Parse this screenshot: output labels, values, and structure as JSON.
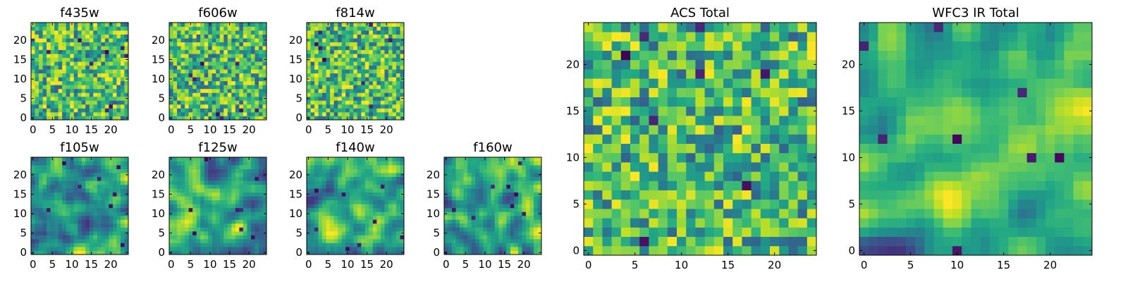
{
  "chart_data": [
    {
      "type": "heatmap",
      "id": "f435w",
      "title": "f435w",
      "grid_size": 25,
      "xlim": [
        -0.5,
        24.5
      ],
      "ylim": [
        -0.5,
        24.5
      ],
      "xticks": [
        0,
        5,
        10,
        15,
        20
      ],
      "yticks": [
        0,
        5,
        10,
        15,
        20
      ],
      "colormap": "viridis",
      "texture": "noisy",
      "seed": 11
    },
    {
      "type": "heatmap",
      "id": "f606w",
      "title": "f606w",
      "grid_size": 25,
      "xlim": [
        -0.5,
        24.5
      ],
      "ylim": [
        -0.5,
        24.5
      ],
      "xticks": [
        0,
        5,
        10,
        15,
        20
      ],
      "yticks": [
        0,
        5,
        10,
        15,
        20
      ],
      "colormap": "viridis",
      "texture": "noisy",
      "seed": 23
    },
    {
      "type": "heatmap",
      "id": "f814w",
      "title": "f814w",
      "grid_size": 25,
      "xlim": [
        -0.5,
        24.5
      ],
      "ylim": [
        -0.5,
        24.5
      ],
      "xticks": [
        0,
        5,
        10,
        15,
        20
      ],
      "yticks": [
        0,
        5,
        10,
        15,
        20
      ],
      "colormap": "viridis",
      "texture": "noisy",
      "seed": 37
    },
    {
      "type": "heatmap",
      "id": "f105w",
      "title": "f105w",
      "grid_size": 25,
      "xlim": [
        -0.5,
        24.5
      ],
      "ylim": [
        -0.5,
        24.5
      ],
      "xticks": [
        0,
        5,
        10,
        15,
        20
      ],
      "yticks": [
        0,
        5,
        10,
        15,
        20
      ],
      "colormap": "viridis",
      "texture": "smooth",
      "seed": 41
    },
    {
      "type": "heatmap",
      "id": "f125w",
      "title": "f125w",
      "grid_size": 25,
      "xlim": [
        -0.5,
        24.5
      ],
      "ylim": [
        -0.5,
        24.5
      ],
      "xticks": [
        0,
        5,
        10,
        15,
        20
      ],
      "yticks": [
        0,
        5,
        10,
        15,
        20
      ],
      "colormap": "viridis",
      "texture": "smooth",
      "seed": 53
    },
    {
      "type": "heatmap",
      "id": "f140w",
      "title": "f140w",
      "grid_size": 25,
      "xlim": [
        -0.5,
        24.5
      ],
      "ylim": [
        -0.5,
        24.5
      ],
      "xticks": [
        0,
        5,
        10,
        15,
        20
      ],
      "yticks": [
        0,
        5,
        10,
        15,
        20
      ],
      "colormap": "viridis",
      "texture": "smooth",
      "seed": 67
    },
    {
      "type": "heatmap",
      "id": "f160w",
      "title": "f160w",
      "grid_size": 25,
      "xlim": [
        -0.5,
        24.5
      ],
      "ylim": [
        -0.5,
        24.5
      ],
      "xticks": [
        0,
        5,
        10,
        15,
        20
      ],
      "yticks": [
        0,
        5,
        10,
        15,
        20
      ],
      "colormap": "viridis",
      "texture": "smooth",
      "seed": 79
    },
    {
      "type": "heatmap",
      "id": "acs-total",
      "title": "ACS Total",
      "grid_size": 25,
      "xlim": [
        -0.5,
        24.5
      ],
      "ylim": [
        -0.5,
        24.5
      ],
      "xticks": [
        0,
        5,
        10,
        15,
        20
      ],
      "yticks": [
        0,
        5,
        10,
        15,
        20
      ],
      "colormap": "viridis",
      "texture": "noisy",
      "seed": 83
    },
    {
      "type": "heatmap",
      "id": "wfc3-ir-total",
      "title": "WFC3 IR Total",
      "grid_size": 25,
      "xlim": [
        -0.5,
        24.5
      ],
      "ylim": [
        -0.5,
        24.5
      ],
      "xticks": [
        0,
        5,
        10,
        15,
        20
      ],
      "yticks": [
        0,
        5,
        10,
        15,
        20
      ],
      "colormap": "viridis",
      "texture": "smooth",
      "seed": 97
    }
  ]
}
